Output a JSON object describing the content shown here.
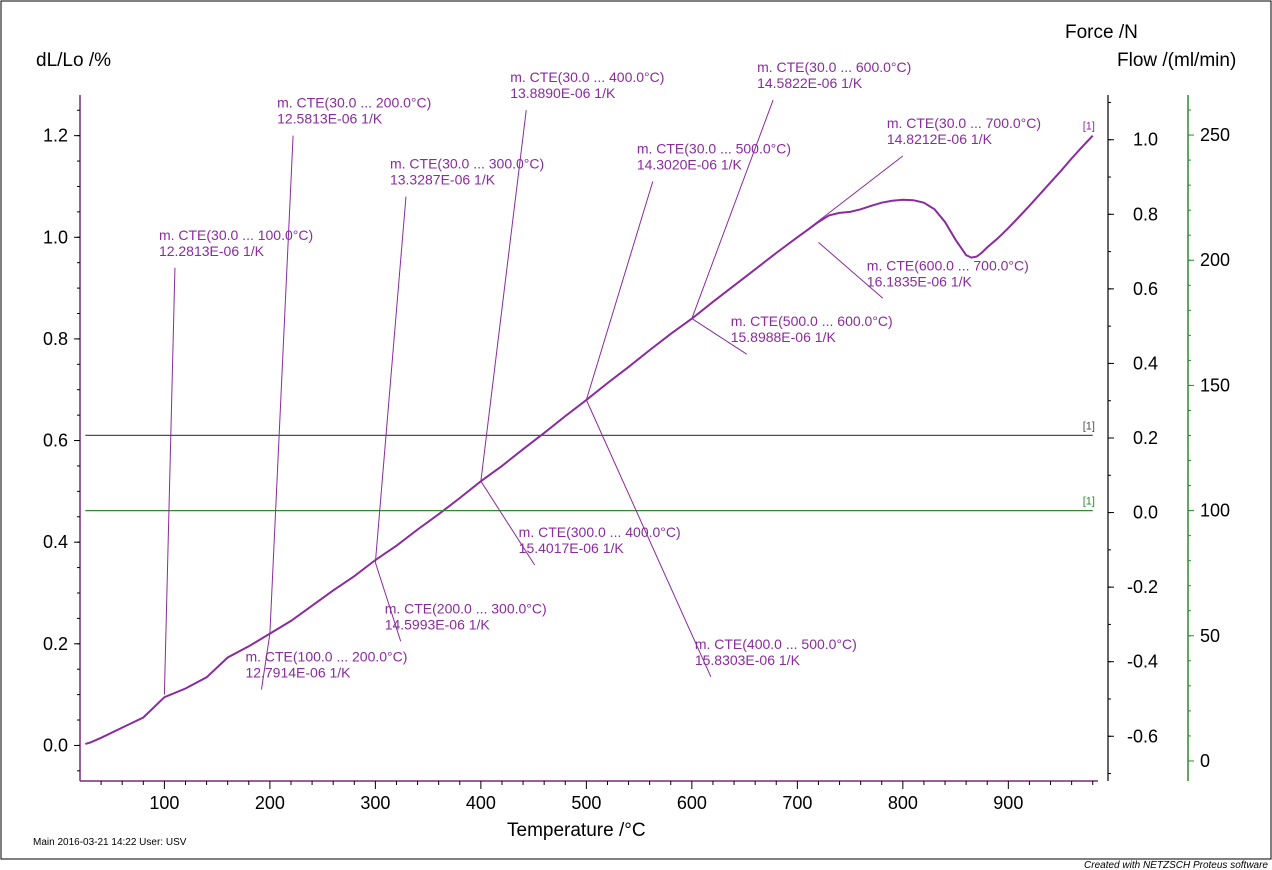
{
  "chart_data": {
    "type": "line",
    "xlabel": "Temperature /°C",
    "ylabel_left": "dL/Lo /%",
    "ylabel_right_1": "Force /N",
    "ylabel_right_2": "Flow /(ml/min)",
    "xlim": [
      20,
      985
    ],
    "ylim_left": [
      -0.07,
      1.28
    ],
    "ylim_force": [
      -0.72,
      1.12
    ],
    "ylim_flow": [
      -8,
      266
    ],
    "x_ticks": [
      100,
      200,
      300,
      400,
      500,
      600,
      700,
      800,
      900
    ],
    "y_ticks_left": [
      0.0,
      0.2,
      0.4,
      0.6,
      0.8,
      1.0,
      1.2
    ],
    "y_ticks_left_labels": [
      "0.0",
      "0.2",
      "0.4",
      "0.6",
      "0.8",
      "1.0",
      "1.2"
    ],
    "y_ticks_force": [
      -0.6,
      -0.4,
      -0.2,
      0.0,
      0.2,
      0.4,
      0.6,
      0.8,
      1.0
    ],
    "y_ticks_force_labels": [
      "-0.6",
      "-0.4",
      "-0.2",
      "0.0",
      "0.2",
      "0.4",
      "0.6",
      "0.8",
      "1.0"
    ],
    "y_ticks_flow": [
      0,
      50,
      100,
      150,
      200,
      250
    ],
    "grid": false,
    "colors": {
      "dl": "#8a2b9e",
      "force": "#505050",
      "flow": "#2e8b2e",
      "annotation": "#8a2b9e",
      "frame": "#000000"
    },
    "series": [
      {
        "key": "dl",
        "axis": "left",
        "tag": "[1]",
        "x": [
          25,
          30,
          40,
          60,
          80,
          100,
          120,
          140,
          160,
          180,
          200,
          220,
          240,
          260,
          280,
          300,
          320,
          340,
          360,
          380,
          400,
          420,
          440,
          460,
          480,
          500,
          520,
          540,
          560,
          580,
          600,
          620,
          640,
          660,
          680,
          700,
          710,
          720,
          730,
          740,
          750,
          760,
          770,
          780,
          790,
          800,
          810,
          820,
          830,
          840,
          850,
          860,
          865,
          870,
          875,
          880,
          890,
          900,
          910,
          920,
          930,
          940,
          950,
          960,
          970,
          980
        ],
        "y": [
          0.003,
          0.006,
          0.015,
          0.035,
          0.055,
          0.095,
          0.112,
          0.134,
          0.173,
          0.195,
          0.22,
          0.245,
          0.275,
          0.305,
          0.333,
          0.365,
          0.393,
          0.425,
          0.455,
          0.487,
          0.52,
          0.55,
          0.583,
          0.615,
          0.648,
          0.68,
          0.713,
          0.745,
          0.778,
          0.81,
          0.84,
          0.873,
          0.905,
          0.937,
          0.969,
          1.0,
          1.015,
          1.03,
          1.043,
          1.048,
          1.05,
          1.055,
          1.062,
          1.068,
          1.072,
          1.074,
          1.073,
          1.068,
          1.055,
          1.03,
          0.995,
          0.965,
          0.96,
          0.962,
          0.97,
          0.98,
          0.998,
          1.018,
          1.04,
          1.062,
          1.085,
          1.108,
          1.131,
          1.155,
          1.178,
          1.2
        ]
      },
      {
        "key": "force",
        "axis": "force",
        "tag": "[1]",
        "x": [
          25,
          980
        ],
        "y": [
          0.207,
          0.207
        ]
      },
      {
        "key": "flow",
        "axis": "flow",
        "tag": "[1]",
        "x": [
          25,
          980
        ],
        "y": [
          100,
          100
        ]
      }
    ],
    "annotations": [
      {
        "lines": [
          "m. CTE(30.0 ... 100.0°C)",
          "12.2813E-06 1/K"
        ],
        "anchor": [
          100,
          0.1
        ],
        "label_at": [
          110,
          0.94
        ]
      },
      {
        "lines": [
          "m. CTE(100.0 ... 200.0°C)",
          "12.7914E-06 1/K"
        ],
        "anchor": [
          200,
          0.22
        ],
        "label_at": [
          192,
          0.11
        ]
      },
      {
        "lines": [
          "m. CTE(30.0 ... 200.0°C)",
          "12.5813E-06 1/K"
        ],
        "anchor": [
          200,
          0.22
        ],
        "label_at": [
          222,
          1.2
        ]
      },
      {
        "lines": [
          "m. CTE(30.0 ... 300.0°C)",
          "13.3287E-06 1/K"
        ],
        "anchor": [
          300,
          0.36
        ],
        "label_at": [
          329,
          1.08
        ]
      },
      {
        "lines": [
          "m. CTE(200.0 ... 300.0°C)",
          "14.5993E-06 1/K"
        ],
        "anchor": [
          300,
          0.36
        ],
        "label_at": [
          324,
          0.205
        ]
      },
      {
        "lines": [
          "m. CTE(30.0 ... 400.0°C)",
          "13.8890E-06 1/K"
        ],
        "anchor": [
          400,
          0.52
        ],
        "label_at": [
          443,
          1.25
        ]
      },
      {
        "lines": [
          "m. CTE(300.0 ... 400.0°C)",
          "15.4017E-06 1/K"
        ],
        "anchor": [
          400,
          0.52
        ],
        "label_at": [
          451,
          0.355
        ]
      },
      {
        "lines": [
          "m. CTE(30.0 ... 500.0°C)",
          "14.3020E-06 1/K"
        ],
        "anchor": [
          500,
          0.68
        ],
        "label_at": [
          563,
          1.11
        ]
      },
      {
        "lines": [
          "m. CTE(400.0 ... 500.0°C)",
          "15.8303E-06 1/K"
        ],
        "anchor": [
          500,
          0.68
        ],
        "label_at": [
          618,
          0.135
        ]
      },
      {
        "lines": [
          "m. CTE(30.0 ... 600.0°C)",
          "14.5822E-06 1/K"
        ],
        "anchor": [
          600,
          0.84
        ],
        "label_at": [
          677,
          1.27
        ]
      },
      {
        "lines": [
          "m. CTE(500.0 ... 600.0°C)",
          "15.8988E-06 1/K"
        ],
        "anchor": [
          600,
          0.84
        ],
        "label_at": [
          652,
          0.77
        ]
      },
      {
        "lines": [
          "m. CTE(30.0 ... 700.0°C)",
          "14.8212E-06 1/K"
        ],
        "anchor": [
          700,
          1.0
        ],
        "label_at": [
          800,
          1.16
        ]
      },
      {
        "lines": [
          "m. CTE(600.0 ... 700.0°C)",
          "16.1835E-06 1/K"
        ],
        "anchor": [
          720,
          0.99
        ],
        "label_at": [
          781,
          0.88
        ]
      }
    ],
    "footer": {
      "left": "Main   2016-03-21 14:22   User: USV",
      "credit": "Created with NETZSCH Proteus software"
    }
  }
}
